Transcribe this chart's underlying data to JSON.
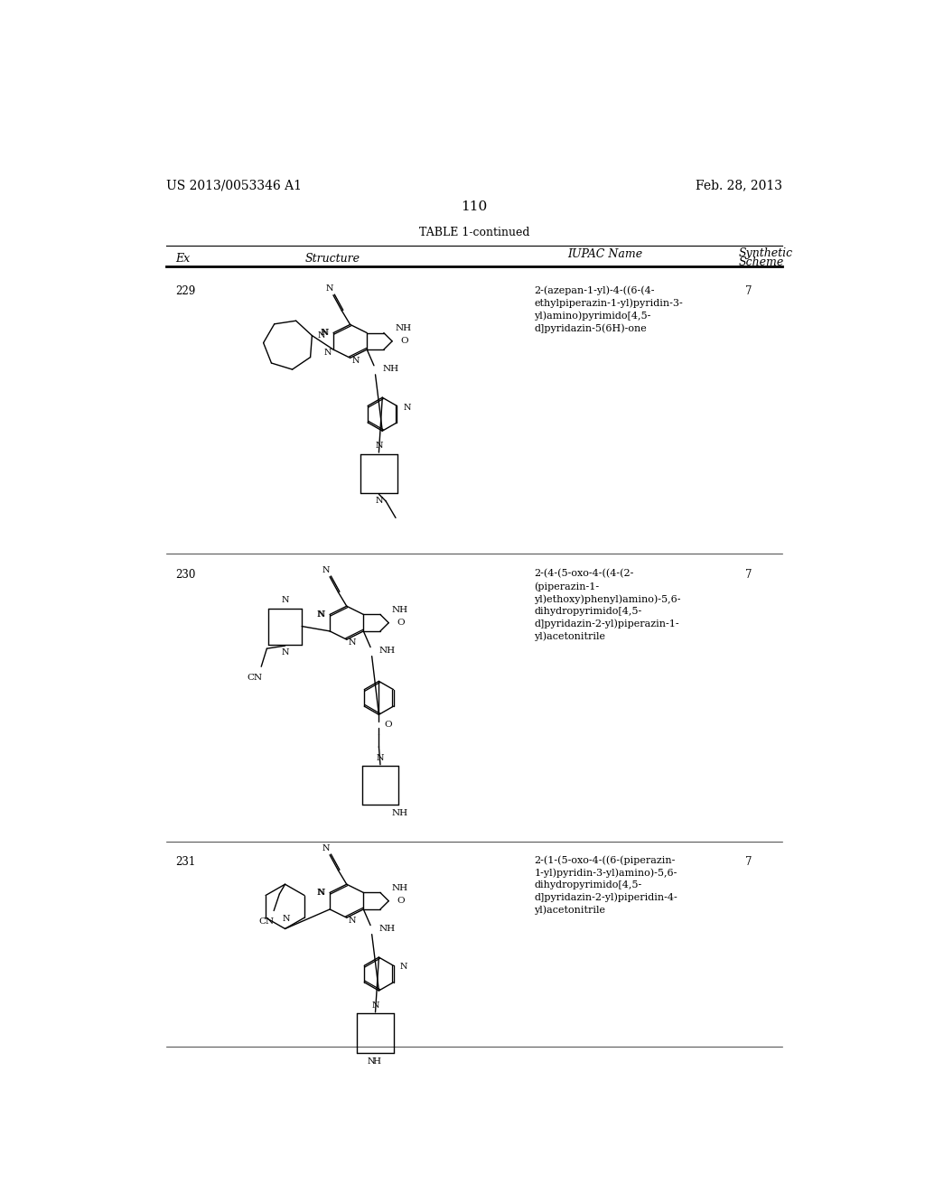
{
  "background_color": "#ffffff",
  "page_number": "110",
  "patent_left": "US 2013/0053346 A1",
  "patent_right": "Feb. 28, 2013",
  "table_title": "TABLE 1-continued",
  "entries": [
    {
      "ex": "229",
      "iupac": "2-(azepan-1-yl)-4-((6-(4-\nethylpiperazin-1-yl)pyridin-3-\nyl)amino)pyrimido[4,5-\nd]pyridazin-5(6H)-one",
      "scheme": "7"
    },
    {
      "ex": "230",
      "iupac": "2-(4-(5-oxo-4-((4-(2-\n(piperazin-1-\nyl)ethoxy)phenyl)amino)-5,6-\ndihydropyrimido[4,5-\nd]pyridazin-2-yl)piperazin-1-\nyl)acetonitrile",
      "scheme": "7"
    },
    {
      "ex": "231",
      "iupac": "2-(1-(5-oxo-4-((6-(piperazin-\n1-yl)pyridin-3-yl)amino)-5,6-\ndihydropyrimido[4,5-\nd]pyridazin-2-yl)piperidin-4-\nyl)acetonitrile",
      "scheme": "7"
    }
  ],
  "text_color": "#000000",
  "font_size_body": 8.5,
  "font_size_page": 10,
  "font_size_table_title": 9,
  "font_size_header": 9
}
